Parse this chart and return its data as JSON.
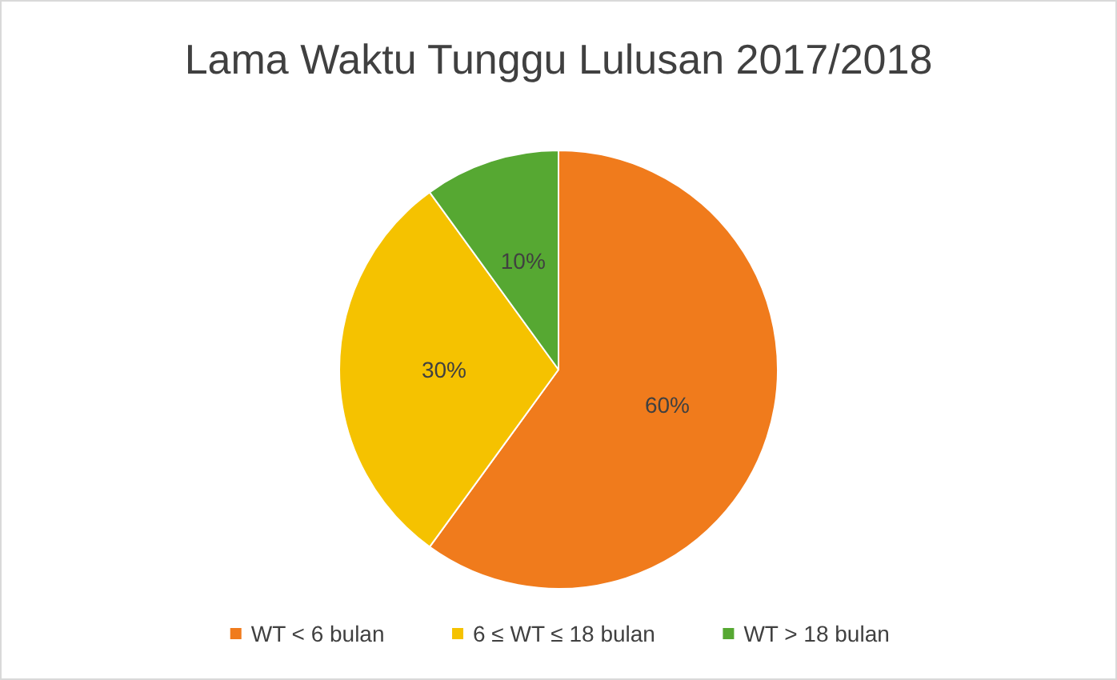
{
  "chart_data": {
    "type": "pie",
    "title": "Lama Waktu Tunggu Lulusan 2017/2018",
    "categories": [
      "WT < 6 bulan",
      "6 ≤ WT ≤ 18 bulan",
      "WT > 18 bulan"
    ],
    "values": [
      60,
      30,
      10
    ],
    "colors": [
      "#f07b1c",
      "#f5c200",
      "#56a832"
    ],
    "value_labels": [
      "60%",
      "30%",
      "10%"
    ],
    "legend": "bottom"
  }
}
